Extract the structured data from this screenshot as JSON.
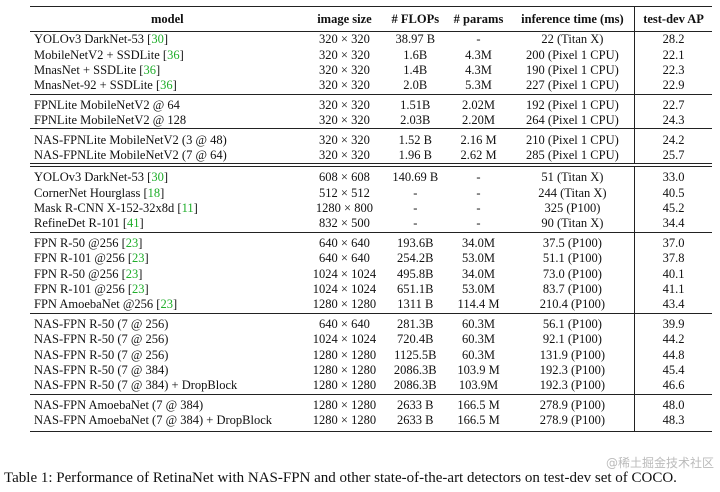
{
  "table": {
    "header": [
      "model",
      "image size",
      "# FLOPs",
      "# params",
      "inference time (ms)",
      "test-dev AP"
    ],
    "groups": [
      [
        [
          "YOLOv3 DarkNet-53 [30]",
          "320 × 320",
          "38.97 B",
          "-",
          "22 (Titan X)",
          "28.2"
        ],
        [
          "MobileNetV2 + SSDLite [36]",
          "320 × 320",
          "1.6B",
          "4.3M",
          "200 (Pixel 1 CPU)",
          "22.1"
        ],
        [
          "MnasNet + SSDLite [36]",
          "320 × 320",
          "1.4B",
          "4.3M",
          "190 (Pixel 1 CPU)",
          "22.3"
        ],
        [
          "MnasNet-92 + SSDLite [36]",
          "320 × 320",
          "2.0B",
          "5.3M",
          "227 (Pixel 1 CPU)",
          "22.9"
        ]
      ],
      [
        [
          "FPNLite MobileNetV2 @ 64",
          "320 × 320",
          "1.51B",
          "2.02M",
          "192 (Pixel 1 CPU)",
          "22.7"
        ],
        [
          "FPNLite MobileNetV2 @ 128",
          "320 × 320",
          "2.03B",
          "2.20M",
          "264 (Pixel 1 CPU)",
          "24.3"
        ]
      ],
      [
        [
          "NAS-FPNLite MobileNetV2 (3 @ 48)",
          "320 × 320",
          "1.52 B",
          "2.16 M",
          "210 (Pixel 1 CPU)",
          "24.2"
        ],
        [
          "NAS-FPNLite MobileNetV2 (7 @ 64)",
          "320 × 320",
          "1.96 B",
          "2.62 M",
          "285 (Pixel 1 CPU)",
          "25.7"
        ]
      ],
      [
        [
          "YOLOv3 DarkNet-53 [30]",
          "608 × 608",
          "140.69 B",
          "-",
          "51 (Titan X)",
          "33.0"
        ],
        [
          "CornerNet Hourglass [18]",
          "512 × 512",
          "-",
          "-",
          "244 (Titan X)",
          "40.5"
        ],
        [
          "Mask R-CNN X-152-32x8d [11]",
          "1280 × 800",
          "-",
          "-",
          "325 (P100)",
          "45.2"
        ],
        [
          "RefineDet R-101 [41]",
          "832 × 500",
          "-",
          "-",
          "90 (Titan X)",
          "34.4"
        ]
      ],
      [
        [
          "FPN R-50 @256 [23]",
          "640 × 640",
          "193.6B",
          "34.0M",
          "37.5 (P100)",
          "37.0"
        ],
        [
          "FPN R-101 @256 [23]",
          "640 × 640",
          "254.2B",
          "53.0M",
          "51.1 (P100)",
          "37.8"
        ],
        [
          "FPN R-50 @256 [23]",
          "1024 × 1024",
          "495.8B",
          "34.0M",
          "73.0 (P100)",
          "40.1"
        ],
        [
          "FPN R-101 @256 [23]",
          "1024 × 1024",
          "651.1B",
          "53.0M",
          "83.7 (P100)",
          "41.1"
        ],
        [
          "FPN AmoebaNet @256 [23]",
          "1280 × 1280",
          "1311 B",
          "114.4 M",
          "210.4 (P100)",
          "43.4"
        ]
      ],
      [
        [
          "NAS-FPN R-50 (7 @ 256)",
          "640 × 640",
          "281.3B",
          "60.3M",
          "56.1 (P100)",
          "39.9"
        ],
        [
          "NAS-FPN R-50 (7 @ 256)",
          "1024 × 1024",
          "720.4B",
          "60.3M",
          "92.1 (P100)",
          "44.2"
        ],
        [
          "NAS-FPN R-50 (7 @ 256)",
          "1280 × 1280",
          "1125.5B",
          "60.3M",
          "131.9 (P100)",
          "44.8"
        ],
        [
          "NAS-FPN R-50 (7 @ 384)",
          "1280 × 1280",
          "2086.3B",
          "103.9 M",
          "192.3 (P100)",
          "45.4"
        ],
        [
          "NAS-FPN R-50 (7 @ 384) + DropBlock",
          "1280 × 1280",
          "2086.3B",
          "103.9M",
          "192.3 (P100)",
          "46.6"
        ]
      ],
      [
        [
          "NAS-FPN AmoebaNet (7 @ 384)",
          "1280 × 1280",
          "2633 B",
          "166.5 M",
          "278.9 (P100)",
          "48.0"
        ],
        [
          "NAS-FPN AmoebaNet (7 @ 384) + DropBlock",
          "1280 × 1280",
          "2633 B",
          "166.5 M",
          "278.9 (P100)",
          "48.3"
        ]
      ]
    ]
  },
  "caption": "Table 1: Performance of RetinaNet with NAS-FPN and other state-of-the-art detectors on test-dev set of COCO.",
  "watermark": "@稀土掘金技术社区"
}
